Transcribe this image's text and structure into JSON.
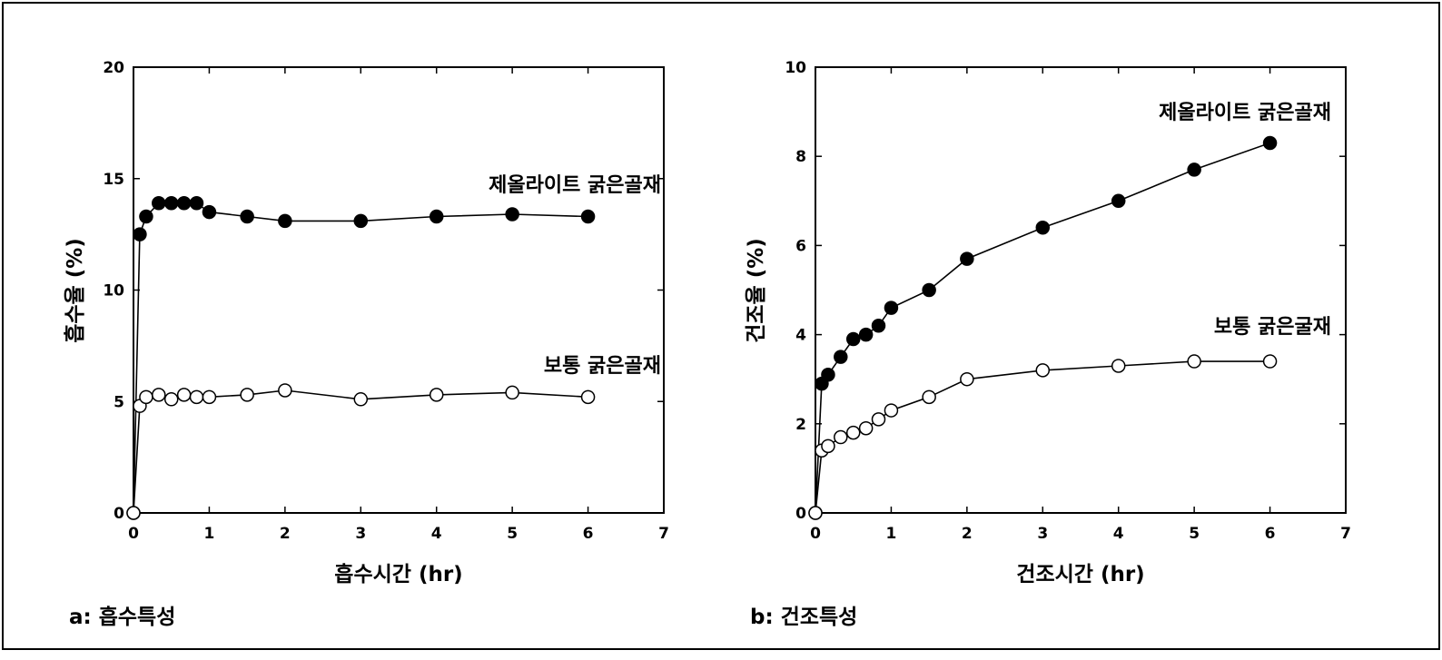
{
  "chart_data": [
    {
      "id": "a",
      "type": "line",
      "caption": "a: 흡수특성",
      "xlabel": "흡수시간 (hr)",
      "ylabel": "흡수율 (%)",
      "xlim": [
        0,
        7
      ],
      "ylim": [
        0,
        20
      ],
      "xticks": [
        "0",
        "1",
        "2",
        "3",
        "4",
        "5",
        "6",
        "7"
      ],
      "yticks": [
        "0",
        "5",
        "10",
        "15",
        "20"
      ],
      "series": [
        {
          "name": "제올라이트 굵은골재",
          "marker": "filled-circle",
          "fill": "#000000",
          "x": [
            0,
            0.083,
            0.167,
            0.333,
            0.5,
            0.667,
            0.833,
            1,
            1.5,
            2,
            3,
            4,
            5,
            6
          ],
          "y": [
            0,
            12.5,
            13.3,
            13.9,
            13.9,
            13.9,
            13.9,
            13.5,
            13.3,
            13.1,
            13.1,
            13.3,
            13.4,
            13.3
          ]
        },
        {
          "name": "보통 굵은골재",
          "marker": "open-circle",
          "fill": "#ffffff",
          "x": [
            0,
            0.083,
            0.167,
            0.333,
            0.5,
            0.667,
            0.833,
            1,
            1.5,
            2,
            3,
            4,
            5,
            6
          ],
          "y": [
            0,
            4.8,
            5.2,
            5.3,
            5.1,
            5.3,
            5.2,
            5.2,
            5.3,
            5.5,
            5.1,
            5.3,
            5.4,
            5.2
          ]
        }
      ]
    },
    {
      "id": "b",
      "type": "line",
      "caption": "b: 건조특성",
      "xlabel": "건조시간 (hr)",
      "ylabel": "건조율 (%)",
      "xlim": [
        0,
        7
      ],
      "ylim": [
        0,
        10
      ],
      "xticks": [
        "0",
        "1",
        "2",
        "3",
        "4",
        "5",
        "6",
        "7"
      ],
      "yticks": [
        "0",
        "2",
        "4",
        "6",
        "8",
        "10"
      ],
      "series": [
        {
          "name": "제올라이트 굵은골재",
          "marker": "filled-circle",
          "fill": "#000000",
          "x": [
            0,
            0.083,
            0.167,
            0.333,
            0.5,
            0.667,
            0.833,
            1,
            1.5,
            2,
            3,
            4,
            5,
            6
          ],
          "y": [
            0,
            2.9,
            3.1,
            3.5,
            3.9,
            4.0,
            4.2,
            4.6,
            5.0,
            5.7,
            6.4,
            7.0,
            7.7,
            8.3
          ]
        },
        {
          "name": "보통 굵은굴재",
          "marker": "open-circle",
          "fill": "#ffffff",
          "x": [
            0,
            0.083,
            0.167,
            0.333,
            0.5,
            0.667,
            0.833,
            1,
            1.5,
            2,
            3,
            4,
            5,
            6
          ],
          "y": [
            0,
            1.4,
            1.5,
            1.7,
            1.8,
            1.9,
            2.1,
            2.3,
            2.6,
            3.0,
            3.2,
            3.3,
            3.4,
            3.4
          ]
        }
      ]
    }
  ]
}
